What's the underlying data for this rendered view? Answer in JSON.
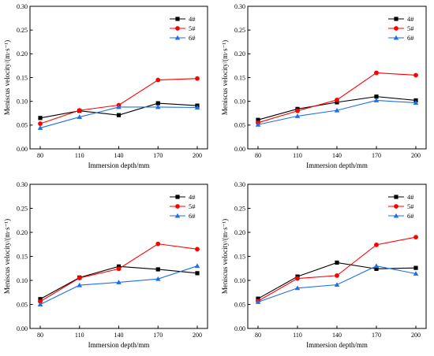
{
  "chart_data": [
    {
      "type": "line",
      "x": [
        80,
        110,
        140,
        170,
        200
      ],
      "xlabel": "Immersion depth/mm",
      "ylabel": "Meniscus velocity/(m·s⁻¹)",
      "ylim": [
        0,
        0.3
      ],
      "yticks": [
        "0.00",
        "0.05",
        "0.10",
        "0.15",
        "0.20",
        "0.25",
        "0.30"
      ],
      "xticks": [
        "80",
        "110",
        "140",
        "170",
        "200"
      ],
      "grid": false,
      "legend_position": "top-right",
      "series": [
        {
          "name": "4#",
          "color": "#000000",
          "marker": "square",
          "values": [
            0.065,
            0.08,
            0.071,
            0.096,
            0.091
          ]
        },
        {
          "name": "5#",
          "color": "#ff0000",
          "marker": "circle",
          "values": [
            0.053,
            0.081,
            0.092,
            0.145,
            0.148
          ]
        },
        {
          "name": "6#",
          "color": "#1f6fe8",
          "marker": "triangle",
          "values": [
            0.044,
            0.067,
            0.088,
            0.088,
            0.087
          ]
        }
      ]
    },
    {
      "type": "line",
      "x": [
        80,
        110,
        140,
        170,
        200
      ],
      "xlabel": "Immersion depth/mm",
      "ylabel": "Meniscus velocity/(m·s⁻¹)",
      "ylim": [
        0,
        0.3
      ],
      "yticks": [
        "0.00",
        "0.05",
        "0.10",
        "0.15",
        "0.20",
        "0.25",
        "0.30"
      ],
      "xticks": [
        "80",
        "110",
        "140",
        "170",
        "200"
      ],
      "grid": false,
      "legend_position": "top-right",
      "series": [
        {
          "name": "4#",
          "color": "#000000",
          "marker": "square",
          "values": [
            0.061,
            0.084,
            0.098,
            0.11,
            0.102
          ]
        },
        {
          "name": "5#",
          "color": "#ff0000",
          "marker": "circle",
          "values": [
            0.055,
            0.08,
            0.103,
            0.16,
            0.155
          ]
        },
        {
          "name": "6#",
          "color": "#1f6fe8",
          "marker": "triangle",
          "values": [
            0.051,
            0.069,
            0.081,
            0.102,
            0.097
          ]
        }
      ]
    },
    {
      "type": "line",
      "x": [
        80,
        110,
        140,
        170,
        200
      ],
      "xlabel": "Immersion depth/mm",
      "ylabel": "Meniscus velocity/(m·s⁻¹)",
      "ylim": [
        0,
        0.3
      ],
      "yticks": [
        "0.00",
        "0.05",
        "0.10",
        "0.15",
        "0.20",
        "0.25",
        "0.30"
      ],
      "xticks": [
        "80",
        "110",
        "140",
        "170",
        "200"
      ],
      "grid": false,
      "legend_position": "top-right",
      "series": [
        {
          "name": "4#",
          "color": "#000000",
          "marker": "square",
          "values": [
            0.061,
            0.106,
            0.129,
            0.123,
            0.115
          ]
        },
        {
          "name": "5#",
          "color": "#ff0000",
          "marker": "circle",
          "values": [
            0.056,
            0.105,
            0.124,
            0.176,
            0.165
          ]
        },
        {
          "name": "6#",
          "color": "#1f6fe8",
          "marker": "triangle",
          "values": [
            0.05,
            0.09,
            0.096,
            0.103,
            0.13
          ]
        }
      ]
    },
    {
      "type": "line",
      "x": [
        80,
        110,
        140,
        170,
        200
      ],
      "xlabel": "Immersion depth/mm",
      "ylabel": "Meniscus velocity/(m·s⁻¹)",
      "ylim": [
        0,
        0.3
      ],
      "yticks": [
        "0.00",
        "0.05",
        "0.10",
        "0.15",
        "0.20",
        "0.25",
        "0.30"
      ],
      "xticks": [
        "80",
        "110",
        "140",
        "170",
        "200"
      ],
      "grid": false,
      "legend_position": "top-right",
      "series": [
        {
          "name": "4#",
          "color": "#000000",
          "marker": "square",
          "values": [
            0.062,
            0.108,
            0.137,
            0.124,
            0.126
          ]
        },
        {
          "name": "5#",
          "color": "#ff0000",
          "marker": "circle",
          "values": [
            0.057,
            0.104,
            0.11,
            0.174,
            0.19
          ]
        },
        {
          "name": "6#",
          "color": "#1f6fe8",
          "marker": "triangle",
          "values": [
            0.055,
            0.084,
            0.091,
            0.13,
            0.114
          ]
        }
      ]
    }
  ]
}
